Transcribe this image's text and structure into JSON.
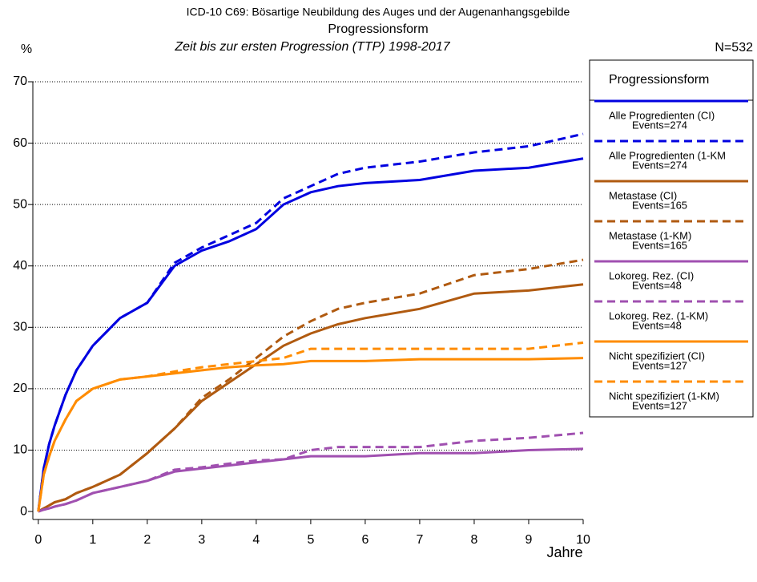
{
  "chart_data": {
    "type": "line",
    "title": "ICD-10 C69: Bösartige Neubildung des Auges und der Augenanhangsgebilde",
    "subtitle": "Progressionsform",
    "subtitle2": "Zeit bis zur ersten Progression (TTP) 1998-2017",
    "y_label": "%",
    "x_label": "Jahre",
    "n_label": "N=532",
    "legend_title": "Progressionsform",
    "x": [
      0,
      0.1,
      0.2,
      0.3,
      0.5,
      0.7,
      1,
      1.5,
      2,
      2.5,
      3,
      3.5,
      4,
      4.5,
      5,
      5.5,
      6,
      7,
      8,
      9,
      10
    ],
    "xlim": [
      -0.1,
      10
    ],
    "xticks": [
      0,
      1,
      2,
      3,
      4,
      5,
      6,
      7,
      8,
      9,
      10
    ],
    "ylim": [
      -1.3,
      70
    ],
    "yticks": [
      0,
      10,
      20,
      30,
      40,
      50,
      60,
      70
    ],
    "grid": true,
    "series": [
      {
        "name": "Alle Progredienten (CI)",
        "events": "Events=274",
        "color": "#0000e0",
        "dashed": false,
        "values": [
          0,
          7,
          11,
          14,
          19,
          23,
          27,
          31.5,
          34,
          40,
          42.5,
          44,
          46,
          50,
          52,
          53,
          53.5,
          54,
          55.5,
          56,
          57.5
        ]
      },
      {
        "name": "Alle Progredienten (1-KM",
        "events": "Events=274",
        "color": "#0000e0",
        "dashed": true,
        "values": [
          0,
          7,
          11,
          14,
          19,
          23,
          27,
          31.5,
          34,
          40.5,
          43,
          45,
          47,
          51,
          53,
          55,
          56,
          57,
          58.5,
          59.5,
          61.5
        ]
      },
      {
        "name": "Metastase (CI)",
        "events": "Events=165",
        "color": "#b05a10",
        "dashed": false,
        "values": [
          0,
          0.5,
          1,
          1.5,
          2,
          3,
          4,
          6,
          9.5,
          13.5,
          18,
          21,
          24,
          27,
          29,
          30.5,
          31.5,
          33,
          35.5,
          36,
          37
        ]
      },
      {
        "name": "Metastase (1-KM)",
        "events": "Events=165",
        "color": "#b05a10",
        "dashed": true,
        "values": [
          0,
          0.5,
          1,
          1.5,
          2,
          3,
          4,
          6,
          9.5,
          13.5,
          18.5,
          21.5,
          25,
          28.5,
          31,
          33,
          34,
          35.5,
          38.5,
          39.5,
          41
        ]
      },
      {
        "name": "Lokoreg. Rez. (CI)",
        "events": "Events=48",
        "color": "#a050b0",
        "dashed": false,
        "values": [
          0,
          0.3,
          0.5,
          0.8,
          1.2,
          1.8,
          3,
          4,
          5,
          6.5,
          7,
          7.5,
          8,
          8.5,
          9,
          9,
          9,
          9.5,
          9.5,
          10,
          10.2
        ]
      },
      {
        "name": "Lokoreg. Rez. (1-KM)",
        "events": "Events=48",
        "color": "#a050b0",
        "dashed": true,
        "values": [
          0,
          0.3,
          0.5,
          0.8,
          1.2,
          1.8,
          3,
          4,
          5,
          6.8,
          7.2,
          7.8,
          8.3,
          8.5,
          10,
          10.5,
          10.5,
          10.5,
          11.5,
          12,
          12.8
        ]
      },
      {
        "name": "Nicht spezifiziert (CI)",
        "events": "Events=127",
        "color": "#ff8c00",
        "dashed": false,
        "values": [
          0,
          6,
          9,
          11.5,
          15,
          18,
          20,
          21.5,
          22,
          22.5,
          23,
          23.5,
          23.8,
          24,
          24.5,
          24.5,
          24.5,
          24.8,
          24.8,
          24.8,
          25
        ]
      },
      {
        "name": "Nicht spezifiziert (1-KM)",
        "events": "Events=127",
        "color": "#ff8c00",
        "dashed": true,
        "values": [
          0,
          6,
          9,
          11.5,
          15,
          18,
          20,
          21.5,
          22,
          22.8,
          23.5,
          24,
          24.5,
          25,
          26.5,
          26.5,
          26.5,
          26.5,
          26.5,
          26.5,
          27.5
        ]
      }
    ]
  }
}
